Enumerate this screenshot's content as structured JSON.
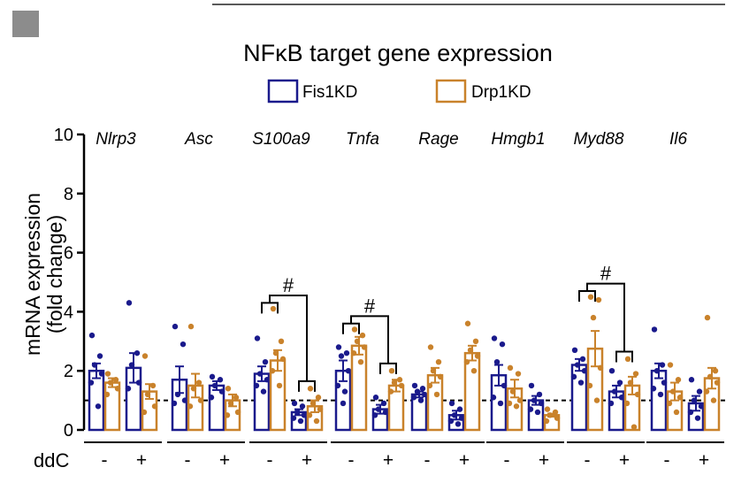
{
  "chart_data": {
    "type": "bar",
    "title": "NFκB target gene expression",
    "ylabel": "mRNA expression",
    "ylabel_sub": "(fold change)",
    "ylim": [
      0,
      10
    ],
    "yticks": [
      "0",
      "2",
      "4",
      "6",
      "8",
      "10"
    ],
    "reference_line": 1,
    "factor_label": "ddC",
    "factor_levels": [
      "-",
      "+"
    ],
    "colors": {
      "Fis1KD": "#1a1a8c",
      "Drp1KD": "#c9822b"
    },
    "legend": [
      "Fis1KD",
      "Drp1KD"
    ],
    "genes": [
      {
        "name": "Nlrp3",
        "bars": [
          {
            "series": "Fis1KD",
            "ddc": "-",
            "value": 2.0,
            "sem": 0.25,
            "points": [
              3.2,
              2.5,
              2.2,
              1.9,
              1.6,
              0.8
            ]
          },
          {
            "series": "Drp1KD",
            "ddc": "-",
            "value": 1.6,
            "sem": 0.15,
            "points": [
              1.9,
              1.7,
              1.6,
              1.4,
              1.2
            ]
          },
          {
            "series": "Fis1KD",
            "ddc": "+",
            "value": 2.1,
            "sem": 0.5,
            "points": [
              4.3,
              2.6,
              2.2,
              1.6,
              1.4
            ]
          },
          {
            "series": "Drp1KD",
            "ddc": "+",
            "value": 1.3,
            "sem": 0.25,
            "points": [
              2.5,
              1.5,
              1.2,
              0.8,
              0.6
            ]
          }
        ]
      },
      {
        "name": "Asc",
        "bars": [
          {
            "series": "Fis1KD",
            "ddc": "-",
            "value": 1.7,
            "sem": 0.45,
            "points": [
              3.5,
              2.9,
              1.2,
              1.0,
              0.9
            ]
          },
          {
            "series": "Drp1KD",
            "ddc": "-",
            "value": 1.5,
            "sem": 0.4,
            "points": [
              3.5,
              1.6,
              1.4,
              1.0,
              0.8
            ]
          },
          {
            "series": "Fis1KD",
            "ddc": "+",
            "value": 1.5,
            "sem": 0.15,
            "points": [
              1.8,
              1.7,
              1.5,
              1.3,
              1.1
            ]
          },
          {
            "series": "Drp1KD",
            "ddc": "+",
            "value": 1.0,
            "sem": 0.2,
            "points": [
              1.4,
              1.1,
              0.9,
              0.6,
              0.5
            ]
          }
        ]
      },
      {
        "name": "S100a9",
        "bars": [
          {
            "series": "Fis1KD",
            "ddc": "-",
            "value": 1.9,
            "sem": 0.25,
            "points": [
              3.1,
              2.3,
              1.9,
              1.7,
              1.5,
              1.3
            ]
          },
          {
            "series": "Drp1KD",
            "ddc": "-",
            "value": 2.35,
            "sem": 0.35,
            "points": [
              4.1,
              3.0,
              2.6,
              2.4,
              2.0,
              1.5
            ]
          },
          {
            "series": "Fis1KD",
            "ddc": "+",
            "value": 0.6,
            "sem": 0.1,
            "points": [
              0.9,
              0.8,
              0.6,
              0.5,
              0.4,
              0.3
            ]
          },
          {
            "series": "Drp1KD",
            "ddc": "+",
            "value": 0.8,
            "sem": 0.2,
            "points": [
              1.4,
              1.1,
              0.9,
              0.7,
              0.5,
              0.3
            ]
          }
        ]
      },
      {
        "name": "Tnfa",
        "bars": [
          {
            "series": "Fis1KD",
            "ddc": "-",
            "value": 2.0,
            "sem": 0.35,
            "points": [
              2.8,
              2.6,
              2.5,
              2.0,
              1.5,
              1.3,
              0.9
            ]
          },
          {
            "series": "Drp1KD",
            "ddc": "-",
            "value": 2.85,
            "sem": 0.3,
            "points": [
              3.4,
              3.2,
              3.0,
              2.8,
              2.6,
              2.3
            ]
          },
          {
            "series": "Fis1KD",
            "ddc": "+",
            "value": 0.7,
            "sem": 0.15,
            "points": [
              1.1,
              0.9,
              0.7,
              0.6,
              0.5
            ]
          },
          {
            "series": "Drp1KD",
            "ddc": "+",
            "value": 1.5,
            "sem": 0.2,
            "points": [
              2.0,
              1.7,
              1.6,
              1.5,
              1.3
            ]
          }
        ]
      },
      {
        "name": "Rage",
        "bars": [
          {
            "series": "Fis1KD",
            "ddc": "-",
            "value": 1.2,
            "sem": 0.1,
            "points": [
              1.5,
              1.4,
              1.3,
              1.2,
              1.1,
              1.0
            ]
          },
          {
            "series": "Drp1KD",
            "ddc": "-",
            "value": 1.85,
            "sem": 0.25,
            "points": [
              2.8,
              2.3,
              2.0,
              1.8,
              1.5,
              1.2
            ]
          },
          {
            "series": "Fis1KD",
            "ddc": "+",
            "value": 0.5,
            "sem": 0.15,
            "points": [
              0.9,
              0.7,
              0.5,
              0.4,
              0.3,
              0.2
            ]
          },
          {
            "series": "Drp1KD",
            "ddc": "+",
            "value": 2.6,
            "sem": 0.25,
            "points": [
              3.6,
              3.0,
              2.7,
              2.5,
              2.3,
              2.0
            ]
          }
        ]
      },
      {
        "name": "Hmgb1",
        "bars": [
          {
            "series": "Fis1KD",
            "ddc": "-",
            "value": 1.85,
            "sem": 0.35,
            "points": [
              3.1,
              2.9,
              2.3,
              1.5,
              1.1,
              0.9
            ]
          },
          {
            "series": "Drp1KD",
            "ddc": "-",
            "value": 1.4,
            "sem": 0.3,
            "points": [
              2.1,
              1.9,
              1.3,
              1.0,
              0.9,
              0.8
            ]
          },
          {
            "series": "Fis1KD",
            "ddc": "+",
            "value": 1.0,
            "sem": 0.15,
            "points": [
              1.5,
              1.2,
              1.0,
              0.9,
              0.7,
              0.6
            ]
          },
          {
            "series": "Drp1KD",
            "ddc": "+",
            "value": 0.5,
            "sem": 0.05,
            "points": [
              0.7,
              0.6,
              0.5,
              0.4,
              0.3
            ]
          }
        ]
      },
      {
        "name": "Myd88",
        "bars": [
          {
            "series": "Fis1KD",
            "ddc": "-",
            "value": 2.2,
            "sem": 0.2,
            "points": [
              2.7,
              2.4,
              2.2,
              2.0,
              1.8,
              1.6
            ]
          },
          {
            "series": "Drp1KD",
            "ddc": "-",
            "value": 2.75,
            "sem": 0.6,
            "points": [
              4.5,
              4.4,
              3.8,
              2.1,
              1.5,
              1.0
            ]
          },
          {
            "series": "Fis1KD",
            "ddc": "+",
            "value": 1.3,
            "sem": 0.2,
            "points": [
              2.0,
              1.6,
              1.3,
              1.1,
              0.9
            ]
          },
          {
            "series": "Drp1KD",
            "ddc": "+",
            "value": 1.5,
            "sem": 0.3,
            "points": [
              2.4,
              1.9,
              1.6,
              1.2,
              0.9,
              0.1
            ]
          }
        ]
      },
      {
        "name": "Il6",
        "bars": [
          {
            "series": "Fis1KD",
            "ddc": "-",
            "value": 2.0,
            "sem": 0.25,
            "points": [
              3.4,
              2.2,
              2.0,
              1.6,
              1.4,
              1.2
            ]
          },
          {
            "series": "Drp1KD",
            "ddc": "-",
            "value": 1.3,
            "sem": 0.3,
            "points": [
              2.2,
              1.7,
              1.3,
              1.1,
              0.9,
              0.6
            ]
          },
          {
            "series": "Fis1KD",
            "ddc": "+",
            "value": 0.9,
            "sem": 0.25,
            "points": [
              1.7,
              1.3,
              1.0,
              0.8,
              0.6,
              0.4
            ]
          },
          {
            "series": "Drp1KD",
            "ddc": "+",
            "value": 1.75,
            "sem": 0.35,
            "points": [
              3.8,
              2.0,
              1.8,
              1.6,
              1.3,
              1.0
            ]
          }
        ]
      }
    ],
    "significance": [
      {
        "gene": "S100a9",
        "label": "#"
      },
      {
        "gene": "Tnfa",
        "label": "#"
      },
      {
        "gene": "Myd88",
        "label": "#"
      }
    ]
  }
}
